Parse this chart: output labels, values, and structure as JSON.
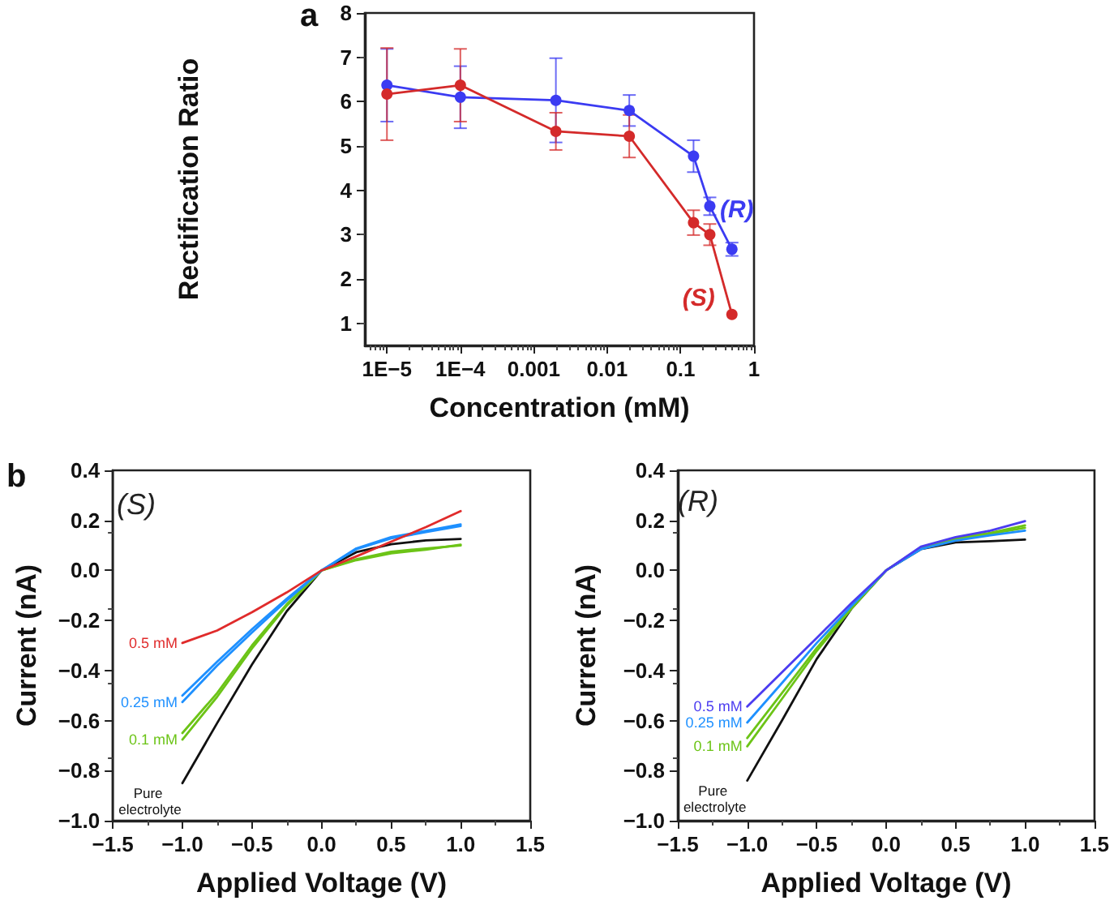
{
  "chart_data": [
    {
      "type": "line",
      "title": "a",
      "xlabel": "Concentration (mM)",
      "ylabel": "Rectification Ratio",
      "log": "x",
      "xlim": [
        5e-06,
        1
      ],
      "xticks": [
        {
          "value": 1e-05,
          "label": "1E−5"
        },
        {
          "value": 0.0001,
          "label": "1E−4"
        },
        0.001,
        0.01,
        0.1,
        1
      ],
      "ylim": [
        0.5,
        8
      ],
      "yticks": [
        1,
        2,
        3,
        4,
        5,
        6,
        7,
        8
      ],
      "marker": "circle",
      "legend": false,
      "grid": false,
      "x": [
        1e-05,
        0.0001,
        0.002,
        0.02,
        0.15,
        0.25,
        0.5
      ],
      "series": [
        {
          "name": "(R)",
          "color": "#3b3bf2",
          "values": [
            6.37,
            6.1,
            6.03,
            5.8,
            4.77,
            3.64,
            2.67
          ],
          "errors": [
            0.82,
            0.7,
            0.95,
            0.35,
            0.36,
            0.2,
            0.15
          ]
        },
        {
          "name": "(S)",
          "color": "#d42a2a",
          "values": [
            6.17,
            6.37,
            5.33,
            5.22,
            3.27,
            3.0,
            1.2
          ],
          "errors": [
            1.04,
            0.82,
            0.42,
            0.48,
            0.28,
            0.24,
            null
          ]
        }
      ]
    },
    {
      "type": "line",
      "title": "b",
      "annotations": [
        "(S)"
      ],
      "xlabel": "Applied Voltage (V)",
      "ylabel": "Current (nA)",
      "marker": "none",
      "legend": false,
      "grid": false,
      "xlim": [
        -1.5,
        1.5
      ],
      "xticks": [
        {
          "value": -1.5,
          "label": "−1.5"
        },
        {
          "value": -1,
          "label": "−1.0"
        },
        {
          "value": -0.5,
          "label": "−0.5"
        },
        {
          "value": 0,
          "label": "0.0"
        },
        0.5,
        {
          "value": 1,
          "label": "1.0"
        },
        1.5
      ],
      "ylim": [
        -1,
        0.4
      ],
      "yticks": [
        {
          "value": -1,
          "label": "−1.0"
        },
        {
          "value": -0.8,
          "label": "−0.8"
        },
        {
          "value": -0.6,
          "label": "−0.6"
        },
        {
          "value": -0.4,
          "label": "−0.4"
        },
        {
          "value": -0.2,
          "label": "−0.2"
        },
        {
          "value": 0,
          "label": "0.0"
        },
        0.2,
        0.4
      ],
      "x": [
        -1,
        -0.75,
        -0.5,
        -0.25,
        0,
        0.25,
        0.5,
        0.75,
        1
      ],
      "series": [
        {
          "name": "Pure electrolyte",
          "color": "#111111",
          "values": [
            -0.85,
            -0.61,
            -0.376,
            -0.163,
            0,
            0.073,
            0.105,
            0.12,
            0.126
          ]
        },
        {
          "name": "0.1 mM",
          "color": "#6cc417",
          "values": [
            -0.676,
            -0.505,
            -0.312,
            -0.141,
            0,
            0.041,
            0.068,
            0.083,
            0.103
          ]
        },
        {
          "color": "#6cc417",
          "values": [
            -0.65,
            -0.49,
            -0.3,
            -0.135,
            0,
            0.045,
            0.075,
            0.088,
            0.1
          ]
        },
        {
          "name": "0.25 mM",
          "color": "#1e90ff",
          "values": [
            -0.526,
            -0.38,
            -0.248,
            -0.12,
            0,
            0.088,
            0.133,
            0.158,
            0.184
          ]
        },
        {
          "color": "#1e90ff",
          "values": [
            -0.5,
            -0.365,
            -0.235,
            -0.113,
            0,
            0.085,
            0.128,
            0.153,
            0.178
          ]
        },
        {
          "name": "0.5 mM",
          "color": "#e02b2b",
          "values": [
            -0.29,
            -0.24,
            -0.167,
            -0.088,
            0,
            0.056,
            0.115,
            0.173,
            0.237
          ]
        }
      ]
    },
    {
      "type": "line",
      "annotations": [
        "(R)"
      ],
      "xlabel": "Applied Voltage (V)",
      "ylabel": "Current (nA)",
      "marker": "none",
      "legend": false,
      "grid": false,
      "xlim": [
        -1.5,
        1.5
      ],
      "xticks": [
        {
          "value": -1.5,
          "label": "−1.5"
        },
        {
          "value": -1,
          "label": "−1.0"
        },
        {
          "value": -0.5,
          "label": "−0.5"
        },
        {
          "value": 0,
          "label": "0.0"
        },
        0.5,
        {
          "value": 1,
          "label": "1.0"
        },
        1.5
      ],
      "ylim": [
        -1,
        0.4
      ],
      "yticks": [
        {
          "value": -1,
          "label": "−1.0"
        },
        {
          "value": -0.8,
          "label": "−0.8"
        },
        {
          "value": -0.6,
          "label": "−0.6"
        },
        {
          "value": -0.4,
          "label": "−0.4"
        },
        {
          "value": -0.2,
          "label": "−0.2"
        },
        {
          "value": 0,
          "label": "0.0"
        },
        0.2,
        0.4
      ],
      "x": [
        -1,
        -0.75,
        -0.5,
        -0.25,
        0,
        0.25,
        0.5,
        0.75,
        1
      ],
      "series": [
        {
          "name": "Pure electrolyte",
          "color": "#111111",
          "values": [
            -0.84,
            -0.6,
            -0.354,
            -0.153,
            0,
            0.085,
            0.112,
            0.117,
            0.123
          ]
        },
        {
          "name": "0.1 mM",
          "color": "#6cc417",
          "values": [
            -0.703,
            -0.513,
            -0.322,
            -0.153,
            0,
            0.091,
            0.129,
            0.15,
            0.18
          ]
        },
        {
          "color": "#6cc417",
          "values": [
            -0.67,
            -0.49,
            -0.31,
            -0.148,
            0,
            0.088,
            0.125,
            0.146,
            0.17
          ]
        },
        {
          "name": "0.25 mM",
          "color": "#1e90ff",
          "values": [
            -0.608,
            -0.45,
            -0.29,
            -0.142,
            0,
            0.085,
            0.119,
            0.14,
            0.159
          ]
        },
        {
          "name": "0.5 mM",
          "color": "#4b3cf0",
          "values": [
            -0.544,
            -0.407,
            -0.27,
            -0.131,
            0,
            0.095,
            0.133,
            0.159,
            0.197
          ]
        }
      ]
    }
  ]
}
